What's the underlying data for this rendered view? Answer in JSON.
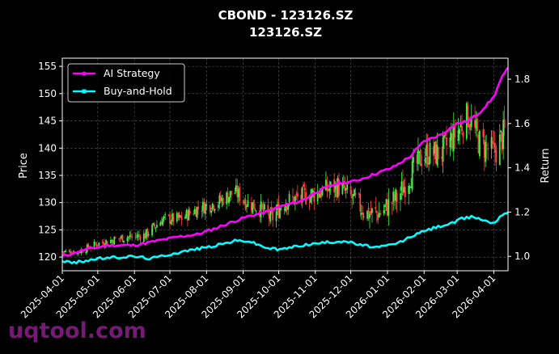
{
  "chart_data": {
    "type": "line",
    "title": "CBOND - 123126.SZ",
    "subtitle": "123126.SZ",
    "ylabel_left": "Price",
    "ylabel_right": "Return",
    "xlabel": "",
    "x_ticks": [
      "2025-04-01",
      "2025-05-01",
      "2025-06-01",
      "2025-07-01",
      "2025-08-01",
      "2025-09-01",
      "2025-10-01",
      "2025-11-01",
      "2025-12-01",
      "2026-01-01",
      "2026-02-01",
      "2026-03-01",
      "2026-04-01"
    ],
    "x_range": [
      "2025-04-01",
      "2026-04-13"
    ],
    "y_left_ticks": [
      120,
      125,
      130,
      135,
      140,
      145,
      150,
      155
    ],
    "y_left_range": [
      117.5,
      156.5
    ],
    "y_right_ticks": [
      1.0,
      1.2,
      1.4,
      1.6,
      1.8
    ],
    "y_right_range": [
      0.935,
      1.895
    ],
    "grid": true,
    "legend_position": "top-left",
    "series": [
      {
        "name": "AI Strategy",
        "axis": "right",
        "color": "#ff00ff",
        "points": [
          [
            "2025-04-01",
            1.0
          ],
          [
            "2025-04-20",
            1.03
          ],
          [
            "2025-05-10",
            1.05
          ],
          [
            "2025-06-01",
            1.05
          ],
          [
            "2025-06-20",
            1.07
          ],
          [
            "2025-07-10",
            1.09
          ],
          [
            "2025-07-25",
            1.1
          ],
          [
            "2025-08-10",
            1.13
          ],
          [
            "2025-08-25",
            1.16
          ],
          [
            "2025-09-05",
            1.18
          ],
          [
            "2025-09-20",
            1.2
          ],
          [
            "2025-10-05",
            1.23
          ],
          [
            "2025-10-20",
            1.25
          ],
          [
            "2025-11-05",
            1.3
          ],
          [
            "2025-11-20",
            1.33
          ],
          [
            "2025-12-05",
            1.34
          ],
          [
            "2025-12-20",
            1.37
          ],
          [
            "2026-01-05",
            1.4
          ],
          [
            "2026-01-20",
            1.45
          ],
          [
            "2026-02-01",
            1.52
          ],
          [
            "2026-02-15",
            1.55
          ],
          [
            "2026-03-01",
            1.6
          ],
          [
            "2026-03-10",
            1.61
          ],
          [
            "2026-03-20",
            1.65
          ],
          [
            "2026-04-01",
            1.72
          ],
          [
            "2026-04-07",
            1.8
          ],
          [
            "2026-04-13",
            1.85
          ]
        ]
      },
      {
        "name": "Buy-and-Hold",
        "axis": "right",
        "color": "#00ffff",
        "points": [
          [
            "2025-04-01",
            0.98
          ],
          [
            "2025-04-10",
            0.97
          ],
          [
            "2025-05-01",
            0.99
          ],
          [
            "2025-06-01",
            1.0
          ],
          [
            "2025-06-15",
            0.99
          ],
          [
            "2025-07-01",
            1.01
          ],
          [
            "2025-07-20",
            1.03
          ],
          [
            "2025-08-10",
            1.05
          ],
          [
            "2025-08-25",
            1.07
          ],
          [
            "2025-09-05",
            1.07
          ],
          [
            "2025-09-20",
            1.04
          ],
          [
            "2025-10-01",
            1.03
          ],
          [
            "2025-10-20",
            1.05
          ],
          [
            "2025-11-05",
            1.06
          ],
          [
            "2025-11-25",
            1.07
          ],
          [
            "2025-12-10",
            1.05
          ],
          [
            "2025-12-25",
            1.04
          ],
          [
            "2026-01-10",
            1.06
          ],
          [
            "2026-01-25",
            1.1
          ],
          [
            "2026-02-10",
            1.13
          ],
          [
            "2026-02-25",
            1.15
          ],
          [
            "2026-03-05",
            1.17
          ],
          [
            "2026-03-15",
            1.18
          ],
          [
            "2026-03-25",
            1.16
          ],
          [
            "2026-04-01",
            1.15
          ],
          [
            "2026-04-08",
            1.19
          ],
          [
            "2026-04-13",
            1.2
          ]
        ]
      }
    ],
    "candles": {
      "name": "Price",
      "axis": "left",
      "up_color": "#44ee44",
      "down_color": "#ff4444",
      "close_anchors": [
        [
          "2025-04-01",
          121
        ],
        [
          "2025-04-15",
          121
        ],
        [
          "2025-05-01",
          122.5
        ],
        [
          "2025-05-20",
          123.5
        ],
        [
          "2025-06-10",
          124
        ],
        [
          "2025-06-25",
          127
        ],
        [
          "2025-07-10",
          127
        ],
        [
          "2025-07-25",
          129
        ],
        [
          "2025-08-10",
          130
        ],
        [
          "2025-08-25",
          132
        ],
        [
          "2025-09-05",
          130
        ],
        [
          "2025-09-15",
          129
        ],
        [
          "2025-09-25",
          127
        ],
        [
          "2025-10-05",
          130
        ],
        [
          "2025-10-20",
          131
        ],
        [
          "2025-11-05",
          132
        ],
        [
          "2025-11-20",
          133
        ],
        [
          "2025-12-01",
          131
        ],
        [
          "2025-12-15",
          128
        ],
        [
          "2025-12-25",
          128
        ],
        [
          "2026-01-10",
          131
        ],
        [
          "2026-01-20",
          135
        ],
        [
          "2026-02-01",
          139
        ],
        [
          "2026-02-15",
          139
        ],
        [
          "2026-03-01",
          143
        ],
        [
          "2026-03-10",
          146
        ],
        [
          "2026-03-20",
          141
        ],
        [
          "2026-04-01",
          139
        ],
        [
          "2026-04-13",
          144
        ]
      ]
    }
  },
  "watermark": "uqtool.com"
}
